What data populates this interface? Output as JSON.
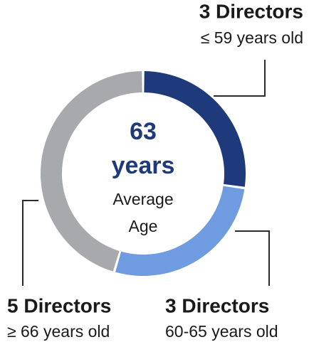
{
  "chart_data": {
    "type": "pie",
    "donut": true,
    "categories": [
      "≤ 59 years old",
      "60-65 years old",
      "≥ 66 years old"
    ],
    "values": [
      3,
      3,
      5
    ],
    "value_labels": [
      "3 Directors",
      "3 Directors",
      "5 Directors"
    ],
    "colors": [
      "#1f3a7a",
      "#6f9be1",
      "#a8a9ad"
    ],
    "center_value": 63,
    "center_unit": "years",
    "center_label": [
      "Average",
      "Age"
    ]
  }
}
